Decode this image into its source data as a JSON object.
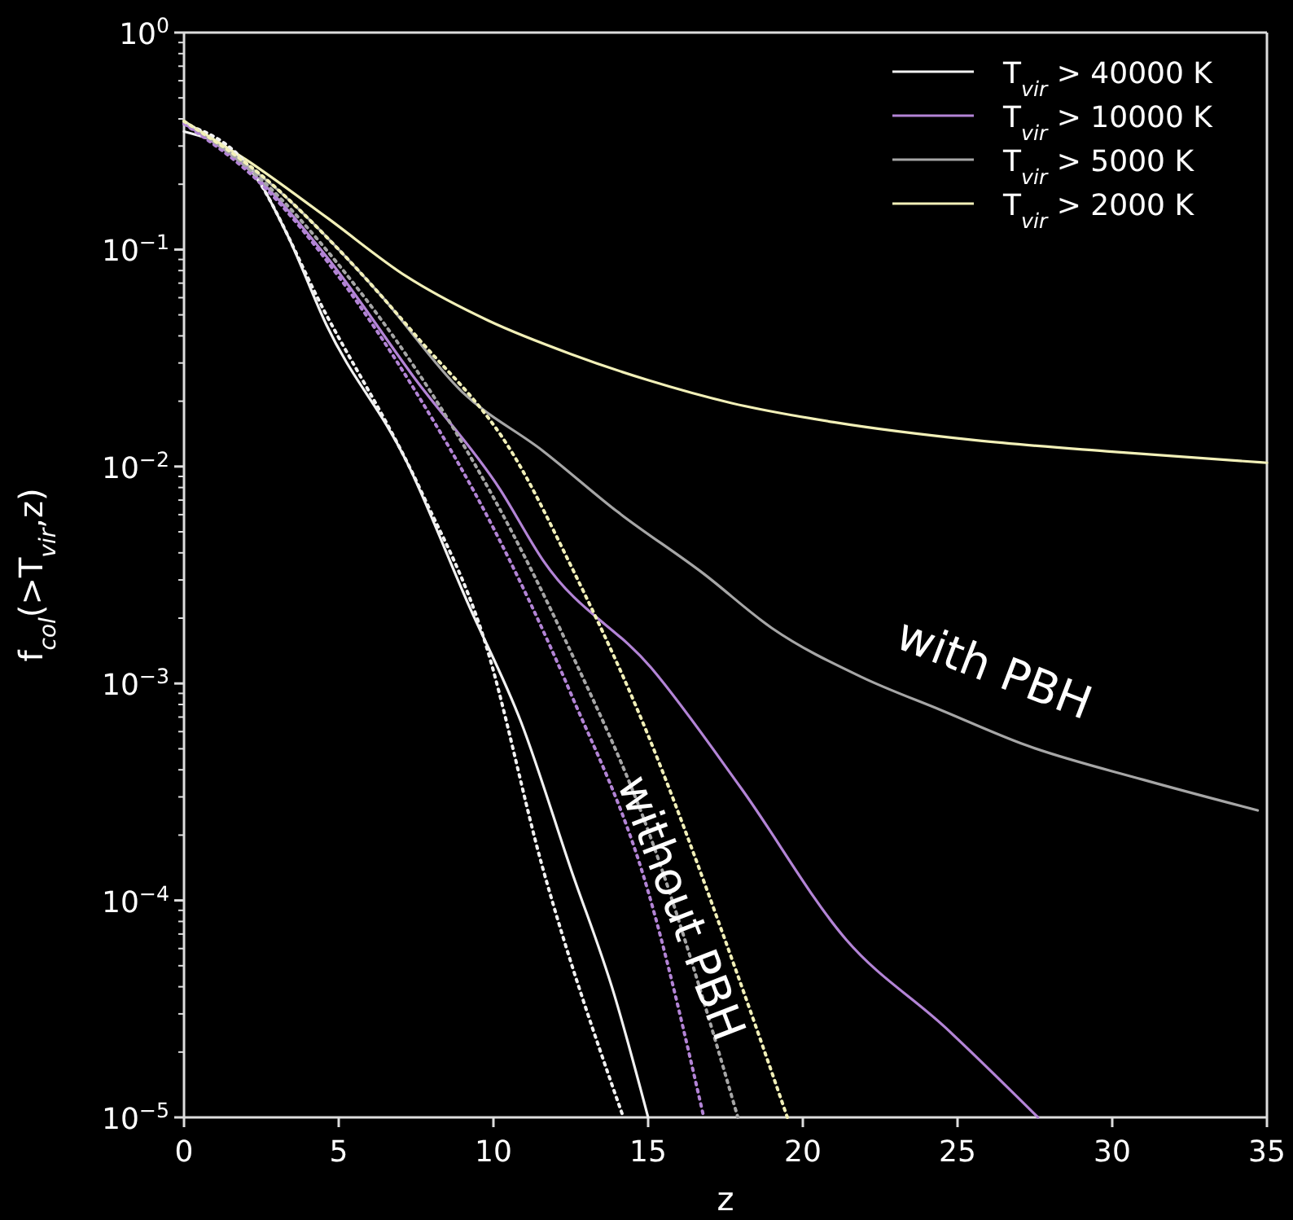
{
  "chart_data": {
    "type": "line",
    "xlabel": "z",
    "ylabel": "f$_{col}$(>T$_{vir}$,z)",
    "log": true,
    "xlim": [
      0,
      35
    ],
    "ylim": [
      1e-05,
      1
    ],
    "xticks": [
      0,
      5,
      10,
      15,
      20,
      25,
      30,
      35
    ],
    "yticks": [
      {
        "value": 1e-05,
        "label": "10$^{−5}$"
      },
      {
        "value": 2e-05,
        "label": null
      },
      {
        "value": 3e-05,
        "label": null
      },
      {
        "value": 4e-05,
        "label": null
      },
      {
        "value": 5e-05,
        "label": null
      },
      {
        "value": 6e-05,
        "label": null
      },
      {
        "value": 7e-05,
        "label": null
      },
      {
        "value": 8e-05,
        "label": null
      },
      {
        "value": 9e-05,
        "label": null
      },
      {
        "value": 0.0001,
        "label": "10$^{−4}$"
      },
      {
        "value": 0.0002,
        "label": null
      },
      {
        "value": 0.0003,
        "label": null
      },
      {
        "value": 0.0004,
        "label": null
      },
      {
        "value": 0.0005,
        "label": null
      },
      {
        "value": 0.0006,
        "label": null
      },
      {
        "value": 0.0007,
        "label": null
      },
      {
        "value": 0.0008,
        "label": null
      },
      {
        "value": 0.0009,
        "label": null
      },
      {
        "value": 0.001,
        "label": "10$^{−3}$"
      },
      {
        "value": 0.002,
        "label": null
      },
      {
        "value": 0.003,
        "label": null
      },
      {
        "value": 0.004,
        "label": null
      },
      {
        "value": 0.005,
        "label": null
      },
      {
        "value": 0.006,
        "label": null
      },
      {
        "value": 0.007,
        "label": null
      },
      {
        "value": 0.008,
        "label": null
      },
      {
        "value": 0.009,
        "label": null
      },
      {
        "value": 0.01,
        "label": "10$^{−2}$"
      },
      {
        "value": 0.02,
        "label": null
      },
      {
        "value": 0.03,
        "label": null
      },
      {
        "value": 0.04,
        "label": null
      },
      {
        "value": 0.05,
        "label": null
      },
      {
        "value": 0.06,
        "label": null
      },
      {
        "value": 0.07,
        "label": null
      },
      {
        "value": 0.08,
        "label": null
      },
      {
        "value": 0.09,
        "label": null
      },
      {
        "value": 0.1,
        "label": "10$^{−1}$"
      },
      {
        "value": 0.2,
        "label": null
      },
      {
        "value": 0.3,
        "label": null
      },
      {
        "value": 0.4,
        "label": null
      },
      {
        "value": 0.5,
        "label": null
      },
      {
        "value": 0.6,
        "label": null
      },
      {
        "value": 0.7,
        "label": null
      },
      {
        "value": 0.8,
        "label": null
      },
      {
        "value": 0.9,
        "label": null
      },
      {
        "value": 1,
        "label": "10$^{0}$"
      }
    ],
    "legend": "top right",
    "grid": false,
    "marker": "none",
    "series": [
      {
        "name": "T$_{vir}$ > 40000 K",
        "color": "#f2f2f2",
        "line_style": "solid",
        "x": [
          0,
          2,
          3.3,
          4.6,
          7.2,
          9.2,
          10.9,
          12.5,
          13.9,
          15
        ],
        "values": [
          0.35,
          0.25,
          0.12,
          0.045,
          0.0105,
          0.0023,
          0.00066,
          0.00014,
          3.7e-05,
          1e-05
        ]
      },
      {
        "name": "T$_{vir}$ > 10000 K",
        "color": "#b384d6",
        "line_style": "solid",
        "x": [
          0,
          2,
          4.6,
          7.5,
          10.2,
          11.6,
          15.1,
          18,
          21.4,
          24.6,
          27.6
        ],
        "values": [
          0.38,
          0.24,
          0.093,
          0.025,
          0.0079,
          0.0037,
          0.00118,
          0.00033,
          6.6e-05,
          2.6e-05,
          1e-05
        ]
      },
      {
        "name": "T$_{vir}$ > 5000 K",
        "color": "#a6a6a6",
        "line_style": "solid",
        "x": [
          0,
          3,
          6.3,
          9,
          11.6,
          14,
          16.8,
          19,
          21.9,
          24.5,
          27.2,
          31,
          34.7
        ],
        "values": [
          0.39,
          0.19,
          0.063,
          0.022,
          0.0118,
          0.0062,
          0.0032,
          0.0018,
          0.00107,
          0.00075,
          0.00052,
          0.00036,
          0.00026
        ]
      },
      {
        "name": "T$_{vir}$ > 2000 K",
        "color": "#f2f0b8",
        "line_style": "solid",
        "x": [
          0,
          2,
          4.6,
          7.2,
          9.84,
          12.5,
          15,
          17.7,
          21,
          25.6,
          30,
          35
        ],
        "values": [
          0.39,
          0.26,
          0.141,
          0.075,
          0.047,
          0.033,
          0.025,
          0.0196,
          0.016,
          0.0132,
          0.0117,
          0.0104
        ]
      },
      {
        "color": "#f2f2f2",
        "line_style": "dotted",
        "x": [
          0,
          2,
          4.6,
          7.7,
          9.7,
          11.6,
          14.2
        ],
        "values": [
          0.38,
          0.25,
          0.05,
          0.0075,
          0.0016,
          0.00014,
          1e-05
        ]
      },
      {
        "color": "#b384d6",
        "line_style": "dotted",
        "x": [
          0,
          2.5,
          5,
          7.5,
          10,
          12.5,
          15,
          16.8
        ],
        "values": [
          0.38,
          0.2,
          0.075,
          0.022,
          0.0052,
          0.0009,
          0.00011,
          1e-05
        ]
      },
      {
        "color": "#a6a6a6",
        "line_style": "dotted",
        "x": [
          0,
          2.5,
          5,
          7.5,
          10,
          12.5,
          15,
          17.9
        ],
        "values": [
          0.39,
          0.21,
          0.085,
          0.028,
          0.0072,
          0.0014,
          0.00021,
          1e-05
        ]
      },
      {
        "color": "#f2f0b8",
        "line_style": "dotted",
        "x": [
          0,
          2.5,
          5,
          7.5,
          10.7,
          12.5,
          14.6,
          17.9,
          19.5
        ],
        "values": [
          0.39,
          0.22,
          0.1,
          0.04,
          0.011,
          0.0035,
          0.00079,
          4.5e-05,
          1e-05
        ]
      }
    ],
    "annotations": [
      "with PBH",
      "without PBH"
    ]
  }
}
